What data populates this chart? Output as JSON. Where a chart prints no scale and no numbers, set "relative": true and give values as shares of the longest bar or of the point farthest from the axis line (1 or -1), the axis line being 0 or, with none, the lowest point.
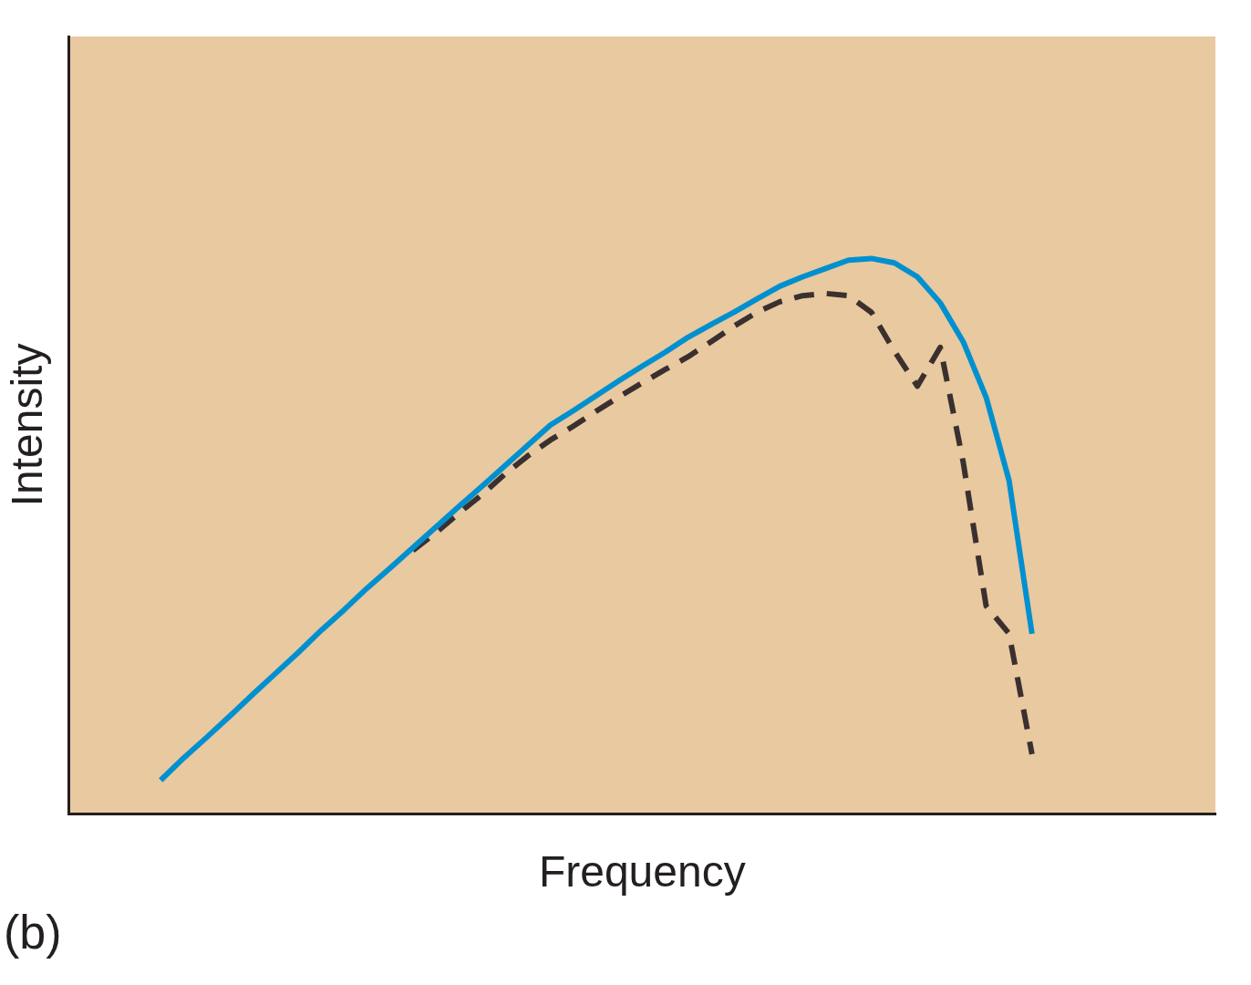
{
  "chart_data": {
    "type": "line",
    "relative": true,
    "xlabel": "Frequency",
    "ylabel": "Intensity",
    "annotations": [
      "(b)"
    ],
    "grid": false,
    "legend": false,
    "marker": "none",
    "categories": [
      null,
      null,
      null,
      null,
      null,
      null,
      null,
      null,
      null,
      null,
      null,
      null,
      null,
      null,
      null,
      null,
      null,
      null,
      null,
      null,
      null,
      null,
      null,
      null,
      null,
      null,
      null,
      null,
      null,
      null,
      null,
      null,
      null,
      null,
      null,
      null,
      null,
      null,
      null,
      null,
      null,
      null,
      null,
      null,
      null,
      null,
      null,
      null,
      null,
      null,
      null
    ],
    "series": [
      {
        "color": "#0090d0",
        "line_style": "solid",
        "values": [
          null,
          null,
          null,
          null,
          0.06,
          0.1,
          0.137,
          0.175,
          0.214,
          0.252,
          0.29,
          0.33,
          0.367,
          0.406,
          0.442,
          0.479,
          0.516,
          0.553,
          0.589,
          0.626,
          0.663,
          0.7,
          0.726,
          0.753,
          0.78,
          0.806,
          0.831,
          0.858,
          0.881,
          0.903,
          0.927,
          0.95,
          0.967,
          0.982,
          0.997,
          1,
          0.992,
          0.967,
          0.92,
          0.85,
          0.75,
          0.6,
          0.324,
          null,
          null,
          null,
          null,
          null,
          null,
          null,
          null
        ]
      },
      {
        "color": "#3a3030",
        "line_style": "dashed",
        "values": [
          null,
          null,
          null,
          null,
          null,
          null,
          null,
          null,
          null,
          null,
          null,
          null,
          null,
          null,
          null,
          0.474,
          0.506,
          0.541,
          0.574,
          0.611,
          0.644,
          0.673,
          0.698,
          0.725,
          0.751,
          0.776,
          0.8,
          0.823,
          0.85,
          0.878,
          0.903,
          0.922,
          0.933,
          0.937,
          0.933,
          0.903,
          0.833,
          0.77,
          0.84,
          0.633,
          0.374,
          0.324,
          0.107,
          null,
          null,
          null,
          null,
          null,
          null,
          null,
          null
        ]
      }
    ]
  }
}
